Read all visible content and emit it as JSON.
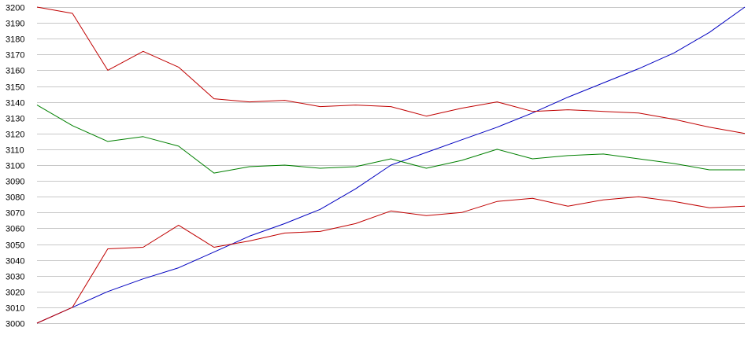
{
  "chart_data": {
    "type": "line",
    "title": "",
    "xlabel": "",
    "ylabel": "",
    "ylim": [
      3000,
      3200
    ],
    "y_ticks": [
      3000,
      3010,
      3020,
      3030,
      3040,
      3050,
      3060,
      3070,
      3080,
      3090,
      3100,
      3110,
      3120,
      3130,
      3140,
      3150,
      3160,
      3170,
      3180,
      3190,
      3200
    ],
    "x_ticks_shown": false,
    "grid": "horizontal",
    "legend": "none",
    "x": [
      0,
      10,
      20,
      30,
      40,
      50,
      60,
      70,
      80,
      90,
      100,
      110,
      120,
      130,
      140,
      150,
      160,
      170,
      180,
      190,
      200
    ],
    "series": [
      {
        "color": "#0000c0",
        "values": [
          3000,
          3010,
          3020,
          3028,
          3035,
          3045,
          3055,
          3063,
          3072,
          3085,
          3100,
          3108,
          3116,
          3124,
          3133,
          3143,
          3152,
          3161,
          3171,
          3184,
          3200
        ]
      },
      {
        "color": "#c00000",
        "values": [
          3200,
          3196,
          3160,
          3172,
          3162,
          3142,
          3140,
          3141,
          3137,
          3138,
          3137,
          3131,
          3136,
          3140,
          3134,
          3135,
          3134,
          3133,
          3129,
          3124,
          3120
        ]
      },
      {
        "color": "#008000",
        "values": [
          3138,
          3125,
          3115,
          3118,
          3112,
          3095,
          3099,
          3100,
          3098,
          3099,
          3104,
          3098,
          3103,
          3110,
          3104,
          3106,
          3107,
          3104,
          3101,
          3097,
          3097
        ]
      },
      {
        "color": "#c00000",
        "values": [
          3000,
          3010,
          3047,
          3048,
          3062,
          3048,
          3052,
          3057,
          3058,
          3063,
          3071,
          3068,
          3070,
          3077,
          3079,
          3074,
          3078,
          3080,
          3077,
          3073,
          3074
        ]
      }
    ]
  }
}
